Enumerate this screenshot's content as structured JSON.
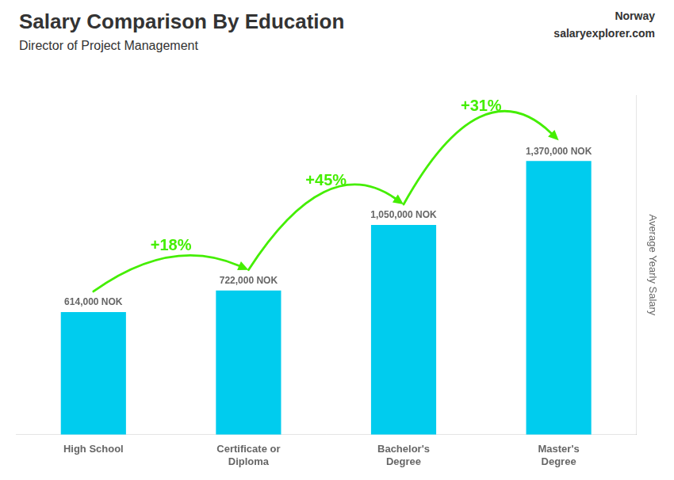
{
  "chart_data": {
    "type": "bar",
    "title": "Salary Comparison By Education",
    "subtitle": "Director of Project Management",
    "ylabel": "Average Yearly Salary",
    "categories": [
      "High School",
      "Certificate or\nDiploma",
      "Bachelor's\nDegree",
      "Master's\nDegree"
    ],
    "values": [
      614000,
      722000,
      1050000,
      1370000
    ],
    "value_labels": [
      "614,000 NOK",
      "722,000 NOK",
      "1,050,000 NOK",
      "1,370,000 NOK"
    ],
    "data_labels": true,
    "color": "#00ccee",
    "ylim": [
      0,
      1700000
    ],
    "grid": false,
    "tick_labels": "x",
    "annotations": [
      {
        "text": "Norway"
      },
      {
        "text": "salaryexplorer.com"
      },
      {
        "text": "+18%",
        "from": 0,
        "to": 1,
        "color": "#44ee00"
      },
      {
        "text": "+45%",
        "from": 1,
        "to": 2,
        "color": "#44ee00"
      },
      {
        "text": "+31%",
        "from": 2,
        "to": 3,
        "color": "#44ee00"
      }
    ]
  }
}
